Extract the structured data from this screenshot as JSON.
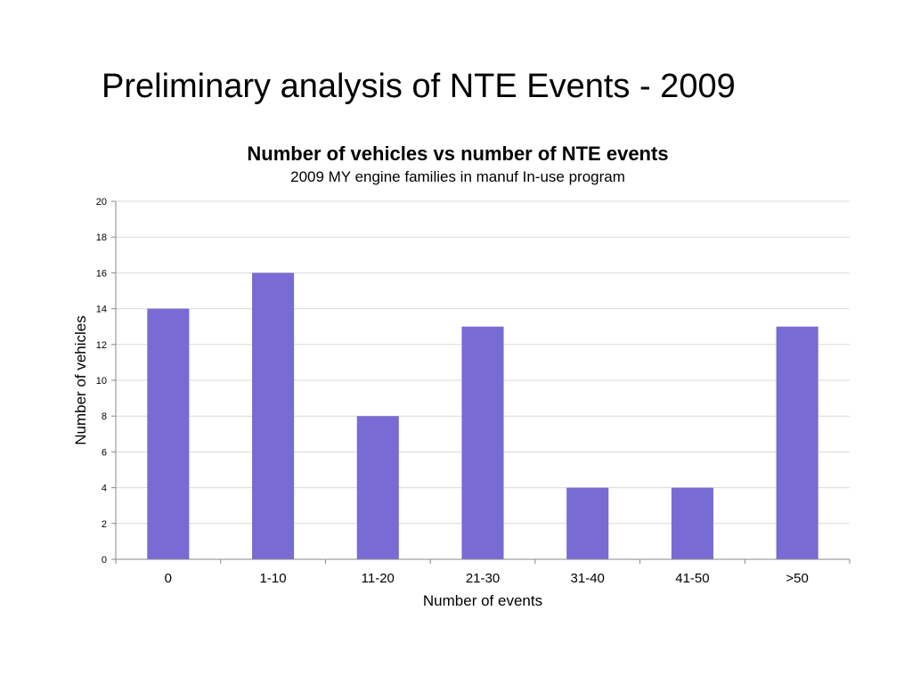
{
  "slide": {
    "title": "Preliminary analysis of NTE Events - 2009"
  },
  "chart_data": {
    "type": "bar",
    "title": "Number of vehicles vs number of NTE events",
    "subtitle": "2009 MY engine families in manuf In-use program",
    "categories": [
      "0",
      "1-10",
      "11-20",
      "21-30",
      "31-40",
      "41-50",
      ">50"
    ],
    "values": [
      14,
      16,
      8,
      13,
      4,
      4,
      13
    ],
    "xlabel": "Number of events",
    "ylabel": "Number of vehicles",
    "ylim": [
      0,
      20
    ],
    "yticks": [
      0,
      2,
      4,
      6,
      8,
      10,
      12,
      14,
      16,
      18,
      20
    ],
    "grid": true,
    "legend": "none",
    "bar_color": "#786BD3"
  }
}
